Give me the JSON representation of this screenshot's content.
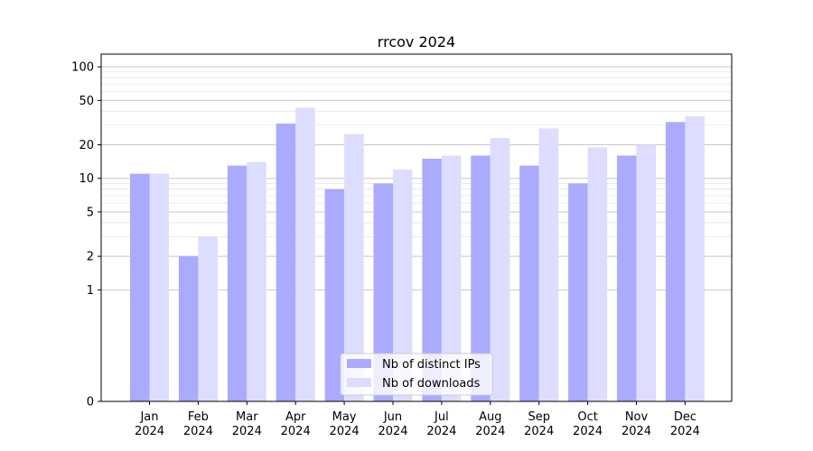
{
  "chart_data": {
    "type": "bar",
    "title": "rrcov 2024",
    "xlabel": "",
    "ylabel": "",
    "yscale": "symlog",
    "ylim": [
      0,
      130
    ],
    "yticks": [
      0,
      1,
      2,
      5,
      10,
      20,
      50,
      100
    ],
    "ytick_labels": [
      "0",
      "1",
      "2",
      "5",
      "10",
      "20",
      "50",
      "100"
    ],
    "grid": true,
    "legend_position": "bottom-center",
    "categories": [
      "Jan",
      "Feb",
      "Mar",
      "Apr",
      "May",
      "Jun",
      "Jul",
      "Aug",
      "Sep",
      "Oct",
      "Nov",
      "Dec"
    ],
    "category_sublabels": [
      "2024",
      "2024",
      "2024",
      "2024",
      "2024",
      "2024",
      "2024",
      "2024",
      "2024",
      "2024",
      "2024",
      "2024"
    ],
    "series": [
      {
        "name": "Nb of distinct IPs",
        "color": "#aaaaff",
        "values": [
          11,
          2,
          13,
          31,
          8,
          9,
          15,
          16,
          13,
          9,
          16,
          32
        ]
      },
      {
        "name": "Nb of downloads",
        "color": "#ddddff",
        "values": [
          11,
          3,
          14,
          43,
          25,
          12,
          16,
          23,
          28,
          19,
          20,
          36
        ]
      }
    ]
  }
}
